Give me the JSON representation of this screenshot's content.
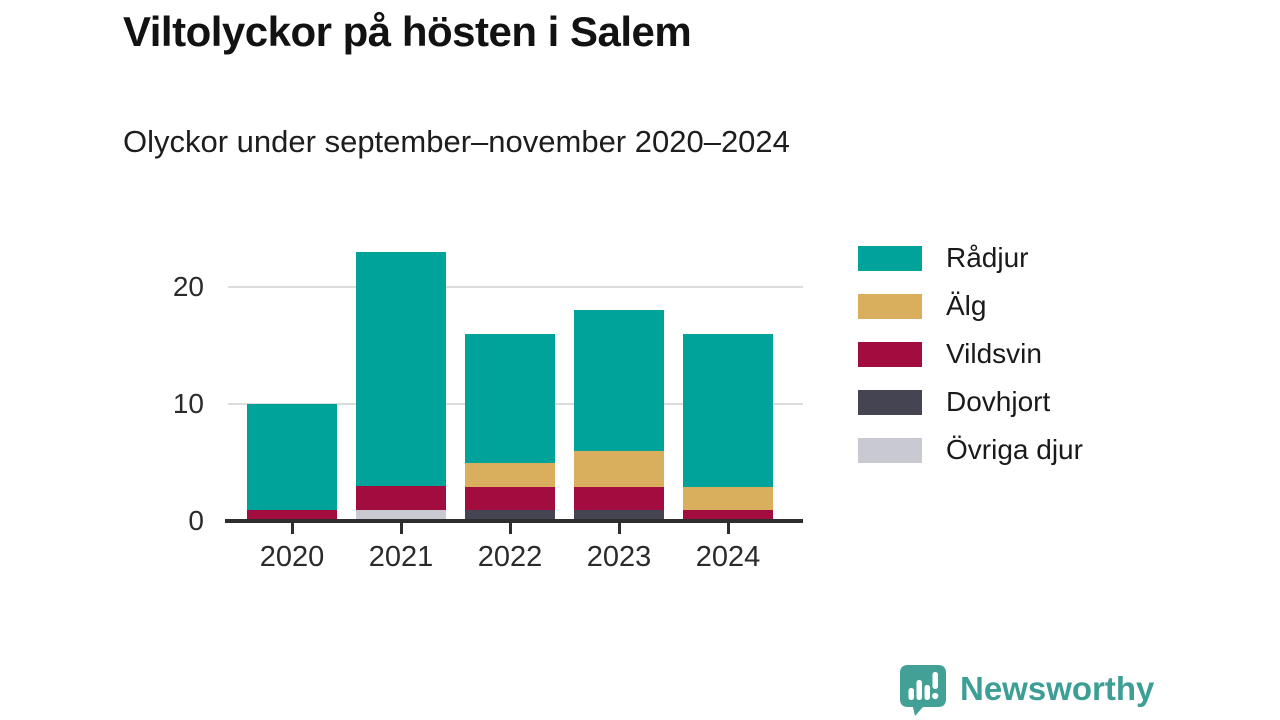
{
  "title": "Viltolyckor på hösten i Salem",
  "subtitle": "Olyckor under september–november 2020–2024",
  "chart_data": {
    "type": "bar",
    "stacked": true,
    "title": "Viltolyckor på hösten i Salem",
    "subtitle": "Olyckor under september–november 2020–2024",
    "categories": [
      "2020",
      "2021",
      "2022",
      "2023",
      "2024"
    ],
    "series": [
      {
        "name": "Rådjur",
        "color": "#00a399",
        "values": [
          9,
          20,
          11,
          12,
          13
        ]
      },
      {
        "name": "Älg",
        "color": "#d9ae5c",
        "values": [
          0,
          0,
          2,
          3,
          2
        ]
      },
      {
        "name": "Vildsvin",
        "color": "#a30c3f",
        "values": [
          1,
          2,
          2,
          2,
          1
        ]
      },
      {
        "name": "Dovhjort",
        "color": "#454453",
        "values": [
          0,
          0,
          1,
          1,
          0
        ]
      },
      {
        "name": "Övriga djur",
        "color": "#c9cad1",
        "values": [
          0,
          1,
          0,
          0,
          0
        ]
      }
    ],
    "stack_order_bottom_to_top": [
      "Övriga djur",
      "Dovhjort",
      "Vildsvin",
      "Älg",
      "Rådjur"
    ],
    "totals": [
      10,
      23,
      16,
      18,
      16
    ],
    "y_ticks": [
      0,
      10,
      20
    ],
    "ylim": [
      0,
      23
    ],
    "grid": "horizontal",
    "legend_position": "right",
    "xlabel": "",
    "ylabel": ""
  },
  "colors": {
    "accent_teal": "#00a399",
    "gold": "#d9ae5c",
    "crimson": "#a30c3f",
    "dark_slate": "#454453",
    "light_gray": "#c9cad1",
    "gridline": "#dcdcdc",
    "axis": "#2e2e2e",
    "brand_teal": "#3d9e96"
  },
  "footer": {
    "brand": "Newsworthy",
    "logo_icon": "newsworthy-speech-bubble-bar-chart-icon"
  }
}
